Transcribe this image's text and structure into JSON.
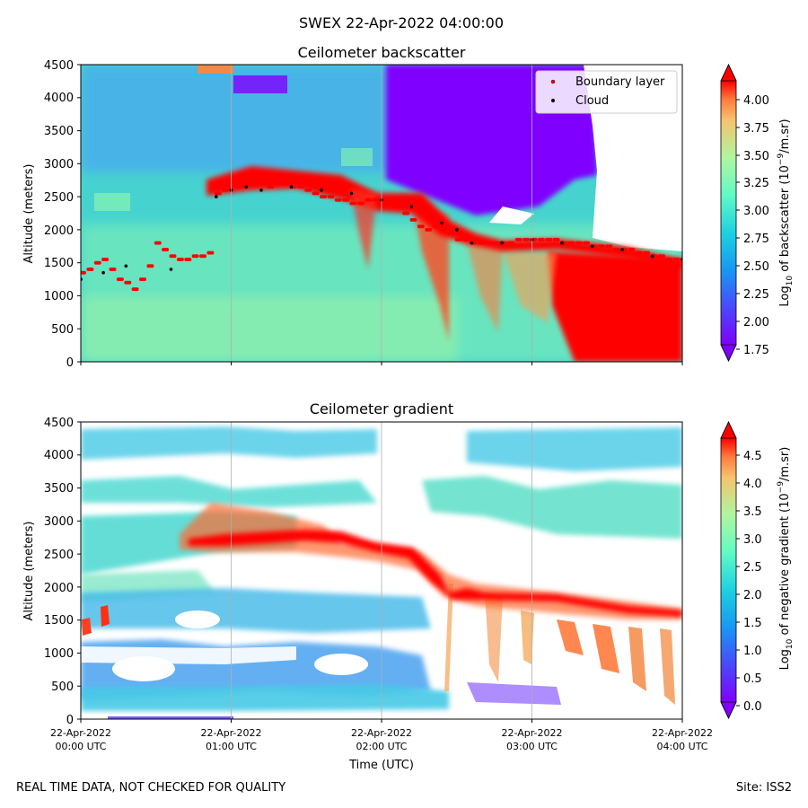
{
  "figure": {
    "suptitle": "SWEX 22-Apr-2022 04:00:00",
    "footer_left": "REAL TIME DATA, NOT CHECKED FOR QUALITY",
    "footer_right": "Site: ISS2"
  },
  "chart_data": [
    {
      "type": "heatmap",
      "title": "Ceilometer backscatter",
      "ylabel": "Altitude (meters)",
      "xlabel": "",
      "xlim": [
        "22-Apr-2022 00:00 UTC",
        "22-Apr-2022 04:00 UTC"
      ],
      "ylim": [
        0,
        4500
      ],
      "yticks": [
        "0",
        "500",
        "1000",
        "1500",
        "2000",
        "2500",
        "3000",
        "3500",
        "4000",
        "4500"
      ],
      "x_gridlines_hours": [
        1,
        2,
        3
      ],
      "colormap": "rainbow",
      "colorbar": {
        "label": "Log10 of backscatter (10^-9/m.sr)",
        "range": [
          1.75,
          4.25
        ],
        "ticks": [
          "1.75",
          "2.00",
          "2.25",
          "2.50",
          "2.75",
          "3.00",
          "3.25",
          "3.50",
          "3.75",
          "4.00"
        ],
        "extend": "both"
      },
      "legend": {
        "placement": "upper right",
        "entries": [
          {
            "name": "Boundary layer",
            "color": "#ff0000",
            "marker": "point"
          },
          {
            "name": "Cloud",
            "color": "#000000",
            "marker": "point"
          }
        ]
      },
      "series": [
        {
          "name": "Boundary layer",
          "x_hours": [
            0.0,
            0.05,
            0.1,
            0.15,
            0.2,
            0.25,
            0.3,
            0.35,
            0.4,
            0.45,
            0.5,
            0.55,
            0.6,
            0.65,
            0.7,
            0.75,
            0.8,
            0.85,
            0.9,
            0.95,
            1.0,
            1.05,
            1.1,
            1.15,
            1.2,
            1.25,
            1.3,
            1.35,
            1.4,
            1.45,
            1.5,
            1.55,
            1.6,
            1.65,
            1.7,
            1.75,
            1.8,
            1.85,
            1.9,
            1.95,
            2.0,
            2.05,
            2.1,
            2.15,
            2.2,
            2.25,
            2.3,
            2.35,
            2.4,
            2.45,
            2.5,
            2.55,
            2.6,
            2.65,
            2.7,
            2.75,
            2.8,
            2.85,
            2.9,
            2.95,
            3.0,
            3.05,
            3.1,
            3.15,
            3.2,
            3.25,
            3.3,
            3.35,
            3.4,
            3.45,
            3.5,
            3.55,
            3.6,
            3.65,
            3.7,
            3.75,
            3.8,
            3.85,
            3.9,
            3.95,
            4.0
          ],
          "y_meters": [
            1350,
            1400,
            1500,
            1550,
            1400,
            1250,
            1200,
            1100,
            1250,
            1450,
            1800,
            1700,
            1600,
            1550,
            1550,
            1600,
            1600,
            1650,
            2550,
            2600,
            2700,
            2650,
            2700,
            2750,
            2700,
            2650,
            2700,
            2700,
            2650,
            2650,
            2600,
            2550,
            2500,
            2500,
            2450,
            2450,
            2400,
            2400,
            2450,
            2450,
            2450,
            2400,
            2350,
            2250,
            2150,
            2050,
            2000,
            2050,
            2000,
            1950,
            1850,
            1850,
            1800,
            1800,
            1800,
            1800,
            1800,
            1800,
            1850,
            1850,
            1850,
            1850,
            1850,
            1850,
            1800,
            1800,
            1800,
            1800,
            1750,
            1750,
            1750,
            1700,
            1700,
            1700,
            1650,
            1650,
            1600,
            1600,
            1550,
            1550,
            1550
          ]
        },
        {
          "name": "Cloud",
          "x_hours": [
            0.0,
            0.15,
            0.3,
            0.6,
            0.9,
            1.0,
            1.1,
            1.2,
            1.4,
            1.6,
            1.8,
            2.0,
            2.2,
            2.4,
            2.5,
            2.6,
            2.8,
            3.0,
            3.2,
            3.4,
            3.6,
            3.8,
            4.0
          ],
          "y_meters": [
            1250,
            1350,
            1450,
            1400,
            2500,
            2600,
            2650,
            2600,
            2650,
            2600,
            2550,
            2450,
            2350,
            2100,
            2000,
            1800,
            1800,
            1850,
            1800,
            1750,
            1700,
            1600,
            1550
          ]
        }
      ]
    },
    {
      "type": "heatmap",
      "title": "Ceilometer gradient",
      "ylabel": "Altitude (meters)",
      "xlabel": "Time (UTC)",
      "xlim": [
        "22-Apr-2022 00:00 UTC",
        "22-Apr-2022 04:00 UTC"
      ],
      "ylim": [
        0,
        4500
      ],
      "yticks": [
        "0",
        "500",
        "1000",
        "1500",
        "2000",
        "2500",
        "3000",
        "3500",
        "4000",
        "4500"
      ],
      "xticks": [
        {
          "date": "22-Apr-2022",
          "time": "00:00 UTC"
        },
        {
          "date": "22-Apr-2022",
          "time": "01:00 UTC"
        },
        {
          "date": "22-Apr-2022",
          "time": "02:00 UTC"
        },
        {
          "date": "22-Apr-2022",
          "time": "03:00 UTC"
        },
        {
          "date": "22-Apr-2022",
          "time": "04:00 UTC"
        }
      ],
      "x_gridlines_hours": [
        1,
        2,
        3
      ],
      "colormap": "rainbow",
      "colorbar": {
        "label": "Log10 of negative gradient (10^-9/m.sr)",
        "range": [
          0.0,
          5.0
        ],
        "ticks": [
          "0.0",
          "0.5",
          "1.0",
          "1.5",
          "2.0",
          "2.5",
          "3.0",
          "3.5",
          "4.0",
          "4.5"
        ],
        "extend": "both"
      },
      "features": [
        {
          "name": "boundary layer gradient band",
          "x_hours": [
            0.9,
            1.2,
            1.5,
            1.8,
            2.0,
            2.2,
            2.4,
            2.6,
            3.0,
            3.5,
            4.0
          ],
          "y_meters": [
            2650,
            2700,
            2800,
            2750,
            2600,
            2550,
            2100,
            1950,
            1950,
            1800,
            1650
          ],
          "level": 4.5
        }
      ]
    }
  ]
}
